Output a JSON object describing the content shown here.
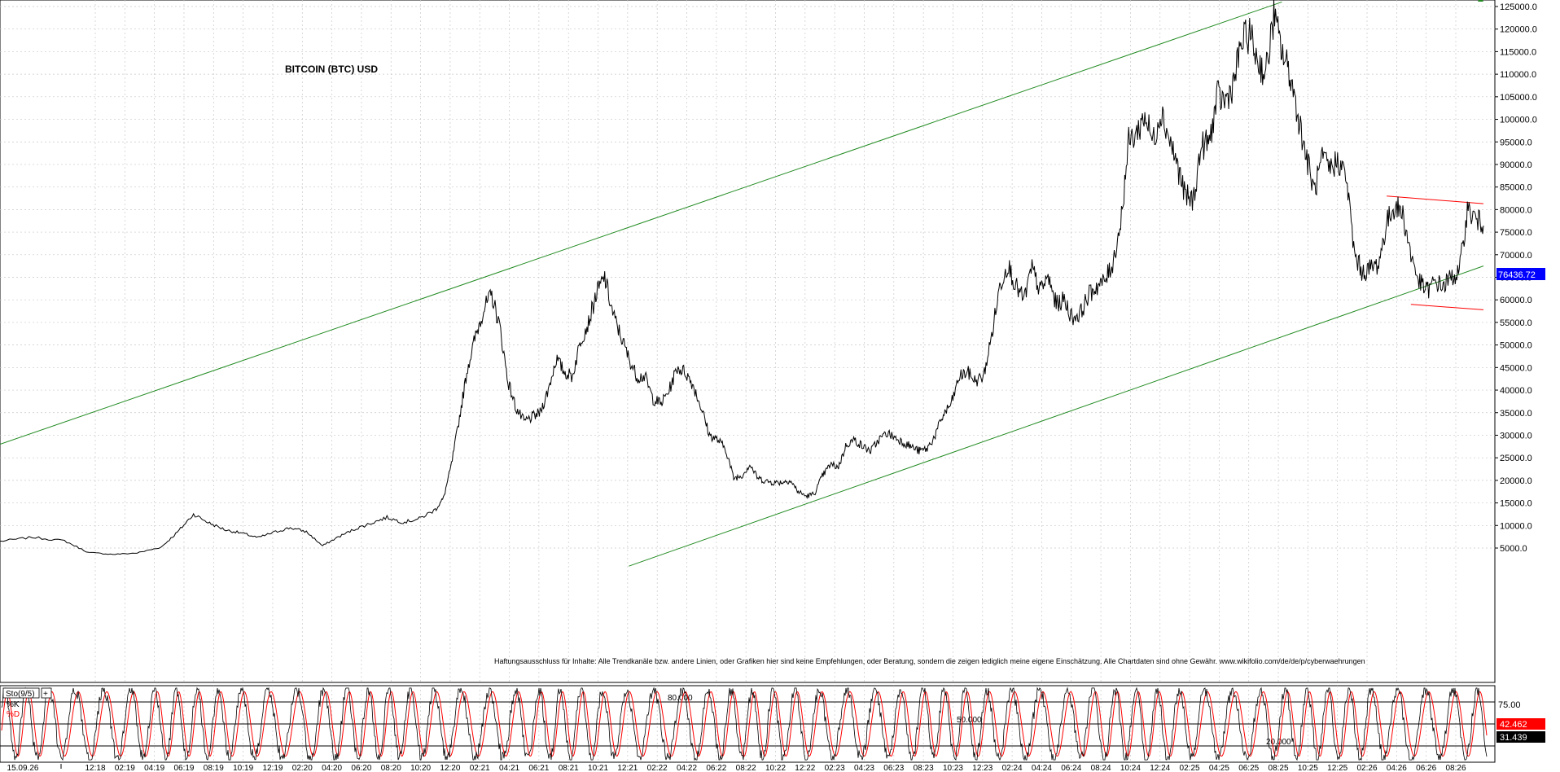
{
  "chart_data": [
    {
      "type": "line",
      "title": "BITCOIN (BTC) USD",
      "disclaimer": "Haftungsausschluss für Inhalte: Alle Trendkanäle bzw. andere Linien, oder Grafiken hier sind keine Empfehlungen, oder Beratung, sondern die zeigen lediglich meine eigene Einschätzung. Alle Chartdaten sind ohne Gewähr.  www.wikifolio.com/de/de/p/cyberwaehrungen",
      "ylim": [
        3000,
        126000
      ],
      "y_tick_labels": [
        "125000.0",
        "120000.0",
        "115000.0",
        "110000.0",
        "105000.0",
        "100000.0",
        "95000.0",
        "90000.0",
        "85000.0",
        "80000.0",
        "75000.0",
        "70000.0",
        "65000.0",
        "60000.0",
        "55000.0",
        "50000.0",
        "45000.0",
        "40000.0",
        "35000.0",
        "30000.0",
        "25000.0",
        "20000.0",
        "15000.0",
        "10000.0",
        "5000.0"
      ],
      "x_tick_labels": [
        "15.09.26",
        "12:18",
        "02:19",
        "04:19",
        "06:19",
        "08:19",
        "10:19",
        "12:19",
        "02:20",
        "04:20",
        "06:20",
        "08:20",
        "10:20",
        "12:20",
        "02:21",
        "04:21",
        "06:21",
        "08:21",
        "10:21",
        "12:21",
        "02:22",
        "04:22",
        "06:22",
        "08:22",
        "10:22",
        "12:22",
        "02:23",
        "04:23",
        "06:23",
        "08:23",
        "10:23",
        "12:23",
        "02:24",
        "04:24",
        "06:24",
        "08:24",
        "10:24",
        "12:24",
        "02:25",
        "04:25",
        "06:25",
        "08:25",
        "10:25",
        "12:25",
        "02:26",
        "04:26",
        "06:26",
        "08:26"
      ],
      "last_price": "76436.72",
      "series": [
        {
          "values": [
            [
              0,
              6500
            ],
            [
              4,
              7400
            ],
            [
              8,
              6600
            ],
            [
              11,
              4000
            ],
            [
              14,
              3600
            ],
            [
              17,
              3900
            ],
            [
              20,
              5200
            ],
            [
              22,
              8500
            ],
            [
              24,
              12500
            ],
            [
              26,
              10500
            ],
            [
              28,
              9000
            ],
            [
              30,
              8300
            ],
            [
              32,
              7300
            ],
            [
              34,
              8500
            ],
            [
              36,
              9500
            ],
            [
              38,
              8600
            ],
            [
              40,
              5500
            ],
            [
              42,
              7500
            ],
            [
              44,
              9200
            ],
            [
              46,
              10500
            ],
            [
              48,
              11800
            ],
            [
              50,
              10700
            ],
            [
              52,
              11500
            ],
            [
              54,
              13500
            ],
            [
              55,
              16000
            ],
            [
              56,
              23500
            ],
            [
              57,
              34000
            ],
            [
              58,
              45000
            ],
            [
              59,
              52000
            ],
            [
              60,
              58000
            ],
            [
              61,
              61000
            ],
            [
              62,
              54000
            ],
            [
              63,
              42000
            ],
            [
              64,
              36000
            ],
            [
              65,
              33000
            ],
            [
              66,
              34000
            ],
            [
              67,
              35000
            ],
            [
              68,
              40000
            ],
            [
              69,
              47000
            ],
            [
              70,
              44000
            ],
            [
              71,
              43000
            ],
            [
              72,
              51000
            ],
            [
              73,
              55000
            ],
            [
              74,
              61500
            ],
            [
              75,
              65000
            ],
            [
              76,
              57000
            ],
            [
              77,
              52000
            ],
            [
              78,
              47000
            ],
            [
              79,
              43000
            ],
            [
              80,
              43000
            ],
            [
              81,
              38000
            ],
            [
              82,
              37000
            ],
            [
              83,
              40000
            ],
            [
              84,
              45000
            ],
            [
              85,
              44000
            ],
            [
              86,
              41000
            ],
            [
              87,
              36000
            ],
            [
              88,
              30000
            ],
            [
              89,
              29000
            ],
            [
              90,
              27000
            ],
            [
              91,
              20500
            ],
            [
              92,
              21000
            ],
            [
              93,
              23500
            ],
            [
              94,
              20500
            ],
            [
              95,
              19800
            ],
            [
              96,
              19500
            ],
            [
              97,
              19600
            ],
            [
              98,
              20000
            ],
            [
              99,
              17500
            ],
            [
              100,
              16500
            ],
            [
              101,
              17000
            ],
            [
              102,
              21000
            ],
            [
              103,
              23500
            ],
            [
              104,
              23000
            ],
            [
              105,
              28000
            ],
            [
              106,
              29000
            ],
            [
              107,
              27500
            ],
            [
              108,
              26500
            ],
            [
              109,
              29000
            ],
            [
              110,
              30500
            ],
            [
              111,
              29500
            ],
            [
              112,
              28500
            ],
            [
              113,
              27500
            ],
            [
              114,
              26500
            ],
            [
              115,
              27000
            ],
            [
              116,
              30000
            ],
            [
              117,
              34500
            ],
            [
              118,
              37000
            ],
            [
              119,
              43000
            ],
            [
              120,
              44000
            ],
            [
              121,
              42000
            ],
            [
              122,
              43000
            ],
            [
              123,
              52000
            ],
            [
              124,
              63000
            ],
            [
              125,
              68000
            ],
            [
              126,
              63000
            ],
            [
              127,
              60000
            ],
            [
              128,
              67000
            ],
            [
              129,
              62000
            ],
            [
              130,
              65000
            ],
            [
              131,
              59000
            ],
            [
              132,
              60000
            ],
            [
              133,
              56000
            ],
            [
              134,
              57000
            ],
            [
              135,
              61000
            ],
            [
              136,
              63000
            ],
            [
              137,
              64000
            ],
            [
              138,
              68000
            ],
            [
              139,
              77000
            ],
            [
              140,
              95000
            ],
            [
              141,
              97000
            ],
            [
              142,
              101000
            ],
            [
              143,
              95000
            ],
            [
              144,
              102000
            ],
            [
              145,
              96000
            ],
            [
              146,
              90000
            ],
            [
              147,
              83000
            ],
            [
              148,
              82000
            ],
            [
              149,
              94000
            ],
            [
              150,
              95000
            ],
            [
              151,
              105000
            ],
            [
              152,
              104000
            ],
            [
              153,
              108000
            ],
            [
              154,
              117000
            ],
            [
              155,
              119000
            ],
            [
              156,
              113000
            ],
            [
              157,
              110000
            ],
            [
              158,
              123000
            ],
            [
              159,
              115000
            ],
            [
              160,
              110000
            ],
            [
              161,
              101000
            ],
            [
              162,
              92000
            ],
            [
              163,
              84000
            ],
            [
              164,
              91000
            ],
            [
              165,
              89000
            ],
            [
              166,
              91000
            ],
            [
              167,
              87000
            ],
            [
              168,
              70000
            ],
            [
              169,
              66000
            ],
            [
              170,
              67000
            ],
            [
              171,
              68000
            ],
            [
              172,
              77000
            ],
            [
              173,
              81000
            ],
            [
              174,
              79000
            ],
            [
              175,
              70000
            ],
            [
              176,
              64000
            ],
            [
              177,
              62000
            ],
            [
              178,
              64000
            ],
            [
              179,
              63000
            ],
            [
              180,
              65000
            ],
            [
              181,
              66000
            ],
            [
              182,
              80000
            ],
            [
              183,
              78000
            ],
            [
              184,
              76437
            ]
          ]
        }
      ],
      "annotations": {
        "channel_lines": [
          {
            "color": "#228b22",
            "from": [
              0,
              28000
            ],
            "to": [
              159,
              126000
            ]
          },
          {
            "color": "#228b22",
            "from": [
              78,
              1000
            ],
            "to": [
              184,
              67500
            ]
          }
        ],
        "range_lines": [
          {
            "color": "#ff0000",
            "from": [
              172,
              83000
            ],
            "to": [
              184,
              81300
            ]
          },
          {
            "color": "#ff0000",
            "from": [
              175,
              59000
            ],
            "to": [
              184,
              57800
            ]
          }
        ]
      },
      "grid": true,
      "price_axis": "right"
    },
    {
      "type": "line",
      "indicator": "Sto(9/5)",
      "ylim": [
        0,
        100
      ],
      "levels": [
        {
          "value": 80,
          "label": "80.000"
        },
        {
          "value": 50,
          "label": "50.000"
        },
        {
          "value": 20,
          "label": "20.000"
        }
      ],
      "right_tick_label": "75.00",
      "series": [
        {
          "name": "%K",
          "color": "#000000",
          "last_value": "31.439"
        },
        {
          "name": "%D",
          "color": "#ff0000",
          "last_value": "42.462"
        }
      ],
      "cycle_period": 4.7,
      "grid": true
    }
  ],
  "toolbar": {
    "plus_icon": "+"
  }
}
